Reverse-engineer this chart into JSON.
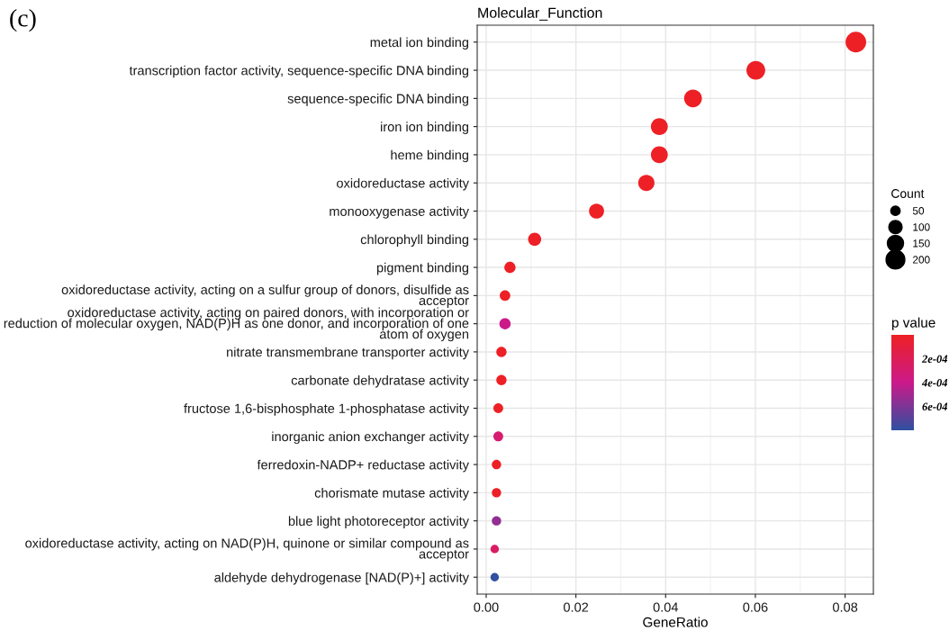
{
  "chart_data": {
    "type": "bubble",
    "orientation": "horizontal",
    "title": "Molecular_Function",
    "xlabel": "GeneRatio",
    "legend_title": "Count",
    "clabel": "p value",
    "annotations": [
      "(c)"
    ],
    "categories": [
      "metal ion binding",
      "transcription factor activity, sequence-specific DNA binding",
      "sequence-specific DNA binding",
      "iron ion binding",
      "heme binding",
      "oxidoreductase activity",
      "monooxygenase activity",
      "chlorophyll binding",
      "pigment binding",
      "oxidoreductase activity, acting on a sulfur group of donors, disulfide as\nacceptor",
      "oxidoreductase activity, acting on paired donors, with incorporation or\nreduction of molecular oxygen, NAD(P)H as one donor, and incorporation of one\natom of oxygen",
      "nitrate transmembrane transporter activity",
      "carbonate dehydratase activity",
      "fructose 1,6-bisphosphate 1-phosphatase activity",
      "inorganic anion exchanger activity",
      "ferredoxin-NADP+ reductase activity",
      "chorismate mutase activity",
      "blue light photoreceptor activity",
      "oxidoreductase activity, acting on NAD(P)H, quinone or similar compound as\nacceptor",
      "aldehyde dehydrogenase [NAD(P)+] activity"
    ],
    "values": [
      0.0824,
      0.0601,
      0.0461,
      0.0386,
      0.0386,
      0.0357,
      0.0246,
      0.0108,
      0.0053,
      0.0042,
      0.0042,
      0.0034,
      0.0034,
      0.0027,
      0.0027,
      0.0023,
      0.0023,
      0.0023,
      0.0019,
      0.0019
    ],
    "sizes": [
      242,
      200,
      180,
      162,
      162,
      150,
      128,
      98,
      72,
      64,
      72,
      60,
      60,
      55,
      55,
      50,
      50,
      50,
      40,
      40
    ],
    "size_legend": [
      50,
      100,
      150,
      200
    ],
    "cvalues": [
      1e-05,
      1e-05,
      1e-05,
      1e-05,
      1e-05,
      1e-05,
      1e-05,
      1e-05,
      1e-05,
      1e-05,
      0.0004,
      1e-05,
      1e-05,
      1e-05,
      0.0003,
      1e-05,
      1e-05,
      0.00055,
      0.00025,
      0.0008
    ],
    "clim": [
      0,
      0.0008
    ],
    "cticks": [
      {
        "value": 0.0002,
        "label": "2e-04"
      },
      {
        "value": 0.0004,
        "label": "4e-04"
      },
      {
        "value": 0.0006,
        "label": "6e-04"
      }
    ],
    "xlim": [
      -0.002,
      0.0863
    ],
    "xticks": [
      {
        "value": 0,
        "label": "0.00"
      },
      {
        "value": 0.02,
        "label": "0.02"
      },
      {
        "value": 0.04,
        "label": "0.04"
      },
      {
        "value": 0.06,
        "label": "0.06"
      },
      {
        "value": 0.08,
        "label": "0.08"
      }
    ],
    "grid": true,
    "marker": "circle"
  }
}
